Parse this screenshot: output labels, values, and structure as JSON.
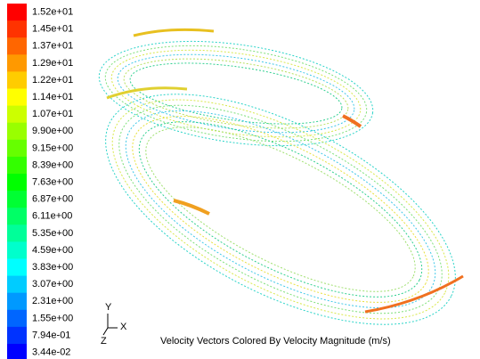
{
  "legend": {
    "labels": [
      "1.52e+01",
      "1.45e+01",
      "1.37e+01",
      "1.29e+01",
      "1.22e+01",
      "1.14e+01",
      "1.07e+01",
      "9.90e+00",
      "9.15e+00",
      "8.39e+00",
      "7.63e+00",
      "6.87e+00",
      "6.11e+00",
      "5.35e+00",
      "4.59e+00",
      "3.83e+00",
      "3.07e+00",
      "2.31e+00",
      "1.55e+00",
      "7.94e-01",
      "3.44e-02"
    ]
  },
  "axes": {
    "y": "Y",
    "x": "X",
    "z": "Z"
  },
  "caption": "Velocity Vectors Colored By Velocity Magnitude (m/s)"
}
